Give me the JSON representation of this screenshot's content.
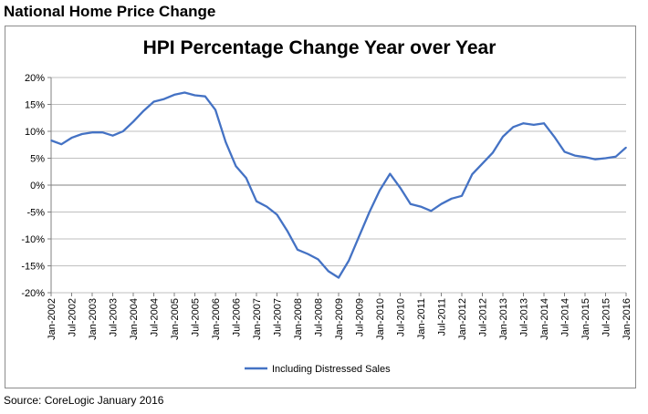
{
  "page": {
    "heading": "National Home Price Change",
    "source": "Source: CoreLogic January 2016"
  },
  "chart_data": {
    "type": "line",
    "title": "HPI Percentage Change Year over Year",
    "xlabel": "",
    "ylabel": "",
    "ylim": [
      -20,
      20
    ],
    "y_ticks": [
      -20,
      -15,
      -10,
      -5,
      0,
      5,
      10,
      15,
      20
    ],
    "y_tick_labels": [
      "-20%",
      "-15%",
      "-10%",
      "-5%",
      "0%",
      "5%",
      "10%",
      "15%",
      "20%"
    ],
    "x_tick_labels": [
      "Jan-2002",
      "Jul-2002",
      "Jan-2003",
      "Jul-2003",
      "Jan-2004",
      "Jul-2004",
      "Jan-2005",
      "Jul-2005",
      "Jan-2006",
      "Jul-2006",
      "Jan-2007",
      "Jul-2007",
      "Jan-2008",
      "Jul-2008",
      "Jan-2009",
      "Jul-2009",
      "Jan-2010",
      "Jul-2010",
      "Jan-2011",
      "Jul-2011",
      "Jan-2012",
      "Jul-2012",
      "Jan-2013",
      "Jul-2013",
      "Jan-2014",
      "Jul-2014",
      "Jan-2015",
      "Jul-2015",
      "Jan-2016"
    ],
    "grid": true,
    "legend_position": "bottom",
    "line_color": "#4472c4",
    "series": [
      {
        "name": "Including Distressed Sales",
        "x": [
          "Jan-2002",
          "Apr-2002",
          "Jul-2002",
          "Oct-2002",
          "Jan-2003",
          "Apr-2003",
          "Jul-2003",
          "Oct-2003",
          "Jan-2004",
          "Apr-2004",
          "Jul-2004",
          "Oct-2004",
          "Jan-2005",
          "Apr-2005",
          "Jul-2005",
          "Oct-2005",
          "Jan-2006",
          "Apr-2006",
          "Jul-2006",
          "Oct-2006",
          "Jan-2007",
          "Apr-2007",
          "Jul-2007",
          "Oct-2007",
          "Jan-2008",
          "Apr-2008",
          "Jul-2008",
          "Oct-2008",
          "Jan-2009",
          "Apr-2009",
          "Jul-2009",
          "Oct-2009",
          "Jan-2010",
          "Apr-2010",
          "Jul-2010",
          "Oct-2010",
          "Jan-2011",
          "Apr-2011",
          "Jul-2011",
          "Oct-2011",
          "Jan-2012",
          "Apr-2012",
          "Jul-2012",
          "Oct-2012",
          "Jan-2013",
          "Apr-2013",
          "Jul-2013",
          "Oct-2013",
          "Jan-2014",
          "Apr-2014",
          "Jul-2014",
          "Oct-2014",
          "Jan-2015",
          "Apr-2015",
          "Jul-2015",
          "Oct-2015",
          "Jan-2016"
        ],
        "values": [
          8.3,
          7.6,
          8.8,
          9.5,
          9.8,
          9.8,
          9.2,
          10.0,
          11.8,
          13.8,
          15.5,
          16.0,
          16.8,
          17.2,
          16.7,
          16.5,
          14.0,
          8.0,
          3.5,
          1.3,
          -3.0,
          -4.0,
          -5.5,
          -8.5,
          -12.0,
          -12.8,
          -13.8,
          -16.0,
          -17.2,
          -14.0,
          -9.5,
          -5.0,
          -1.0,
          2.1,
          -0.5,
          -3.5,
          -4.0,
          -4.8,
          -3.5,
          -2.5,
          -2.0,
          2.0,
          4.0,
          6.0,
          9.0,
          10.8,
          11.5,
          11.2,
          11.5,
          9.0,
          6.2,
          5.5,
          5.2,
          4.8,
          5.0,
          5.3,
          7.0
        ]
      }
    ]
  }
}
